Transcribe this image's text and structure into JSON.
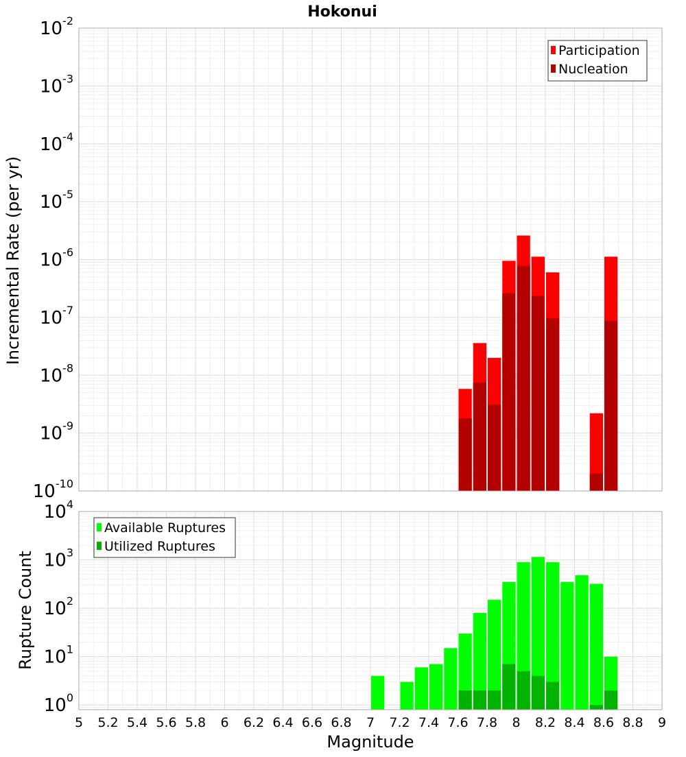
{
  "chart_data": [
    {
      "type": "bar",
      "title": "Hokonui",
      "xlabel": "Magnitude",
      "ylabel": "Incremental Rate (per yr)",
      "xlim": [
        5,
        9
      ],
      "ylim": [
        1e-10,
        0.01
      ],
      "log_y": true,
      "grid": true,
      "legend_position": "top-right",
      "y_ticks": [
        {
          "base": "10",
          "exp": "-2",
          "value": 0.01
        },
        {
          "base": "10",
          "exp": "-3",
          "value": 0.001
        },
        {
          "base": "10",
          "exp": "-4",
          "value": 0.0001
        },
        {
          "base": "10",
          "exp": "-5",
          "value": 1e-05
        },
        {
          "base": "10",
          "exp": "-6",
          "value": 1e-06
        },
        {
          "base": "10",
          "exp": "-7",
          "value": 1e-07
        },
        {
          "base": "10",
          "exp": "-8",
          "value": 1e-08
        },
        {
          "base": "10",
          "exp": "-9",
          "value": 1e-09
        },
        {
          "base": "10",
          "exp": "-10",
          "value": 1e-10
        }
      ],
      "bar_width": 0.1,
      "series": [
        {
          "name": "Participation",
          "color": "#ff0000",
          "points": [
            {
              "x": 7.65,
              "y": 5.8e-09
            },
            {
              "x": 7.75,
              "y": 3.6e-08
            },
            {
              "x": 7.85,
              "y": 2e-08
            },
            {
              "x": 7.95,
              "y": 9.5e-07
            },
            {
              "x": 8.05,
              "y": 2.6e-06
            },
            {
              "x": 8.15,
              "y": 1.12e-06
            },
            {
              "x": 8.25,
              "y": 6e-07
            },
            {
              "x": 8.55,
              "y": 2.2e-09
            },
            {
              "x": 8.65,
              "y": 1.12e-06
            }
          ]
        },
        {
          "name": "Nucleation",
          "color": "#b30000",
          "points": [
            {
              "x": 7.65,
              "y": 1.8e-09
            },
            {
              "x": 7.75,
              "y": 7.5e-09
            },
            {
              "x": 7.85,
              "y": 3.1e-09
            },
            {
              "x": 7.95,
              "y": 2.6e-07
            },
            {
              "x": 8.05,
              "y": 7.8e-07
            },
            {
              "x": 8.15,
              "y": 2.35e-07
            },
            {
              "x": 8.25,
              "y": 9.6e-08
            },
            {
              "x": 8.55,
              "y": 2e-10
            },
            {
              "x": 8.65,
              "y": 8.8e-08
            }
          ]
        }
      ]
    },
    {
      "type": "bar",
      "title": "",
      "xlabel": "Magnitude",
      "ylabel": "Rupture Count",
      "xlim": [
        5,
        9
      ],
      "ylim": [
        0.8,
        10000.0
      ],
      "log_y": true,
      "grid": true,
      "legend_position": "top-left",
      "x_ticks": [
        "5",
        "5.2",
        "5.4",
        "5.6",
        "5.8",
        "6",
        "6.2",
        "6.4",
        "6.6",
        "6.8",
        "7",
        "7.2",
        "7.4",
        "7.6",
        "7.8",
        "8",
        "8.2",
        "8.4",
        "8.6",
        "8.8",
        "9"
      ],
      "y_ticks": [
        {
          "base": "10",
          "exp": "4",
          "value": 10000.0
        },
        {
          "base": "10",
          "exp": "3",
          "value": 1000.0
        },
        {
          "base": "10",
          "exp": "2",
          "value": 100.0
        },
        {
          "base": "10",
          "exp": "1",
          "value": 10.0
        },
        {
          "base": "10",
          "exp": "0",
          "value": 1
        }
      ],
      "bar_width": 0.1,
      "series": [
        {
          "name": "Available Ruptures",
          "color": "#00ff00",
          "points": [
            {
              "x": 7.05,
              "y": 4
            },
            {
              "x": 7.25,
              "y": 3
            },
            {
              "x": 7.35,
              "y": 6
            },
            {
              "x": 7.45,
              "y": 7
            },
            {
              "x": 7.55,
              "y": 15
            },
            {
              "x": 7.65,
              "y": 30
            },
            {
              "x": 7.75,
              "y": 80
            },
            {
              "x": 7.85,
              "y": 150
            },
            {
              "x": 7.95,
              "y": 350
            },
            {
              "x": 8.05,
              "y": 900
            },
            {
              "x": 8.15,
              "y": 1150
            },
            {
              "x": 8.25,
              "y": 900
            },
            {
              "x": 8.35,
              "y": 350
            },
            {
              "x": 8.45,
              "y": 480
            },
            {
              "x": 8.55,
              "y": 320
            },
            {
              "x": 8.65,
              "y": 10
            }
          ]
        },
        {
          "name": "Utilized Ruptures",
          "color": "#00b300",
          "points": [
            {
              "x": 7.65,
              "y": 2
            },
            {
              "x": 7.75,
              "y": 2
            },
            {
              "x": 7.85,
              "y": 2
            },
            {
              "x": 7.95,
              "y": 7
            },
            {
              "x": 8.05,
              "y": 5
            },
            {
              "x": 8.15,
              "y": 4
            },
            {
              "x": 8.25,
              "y": 3
            },
            {
              "x": 8.55,
              "y": 1
            },
            {
              "x": 8.65,
              "y": 2
            }
          ]
        }
      ]
    }
  ]
}
